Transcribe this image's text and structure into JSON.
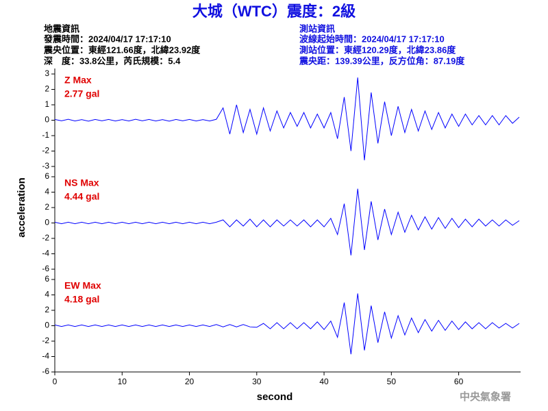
{
  "header": {
    "title": "大城（WTC）震度：2級",
    "quake_info": [
      "地震資訊",
      "發震時間：2024/04/17 17:17:10",
      "震央位置：東經121.66度，北緯23.92度",
      "深　度：33.8公里，芮氏規模：5.4"
    ],
    "station_info": [
      "測站資訊",
      "波線起始時間：2024/04/17 17:17:10",
      "測站位置：東經120.29度，北緯23.86度",
      "震央距：139.39公里，反方位角：87.19度"
    ],
    "y_label": "acceleration",
    "x_label": "second",
    "footer": "中央氣象署"
  },
  "chart_data": [
    {
      "type": "line",
      "annotations": [
        "Z Max",
        "2.77 gal"
      ],
      "x": [
        0,
        1,
        2,
        3,
        4,
        5,
        6,
        7,
        8,
        9,
        10,
        11,
        12,
        13,
        14,
        15,
        16,
        17,
        18,
        19,
        20,
        21,
        22,
        23,
        24,
        25,
        26,
        27,
        28,
        29,
        30,
        31,
        32,
        33,
        34,
        35,
        36,
        37,
        38,
        39,
        40,
        41,
        42,
        43,
        44,
        45,
        46,
        47,
        48,
        49,
        50,
        51,
        52,
        53,
        54,
        55,
        56,
        57,
        58,
        59,
        60,
        61,
        62,
        63,
        64,
        65,
        66,
        67,
        68,
        69
      ],
      "series": [
        {
          "color": "#0000ff",
          "values": [
            0.05,
            -0.04,
            0.06,
            -0.05,
            0.04,
            -0.06,
            0.05,
            -0.04,
            0.05,
            -0.05,
            0.04,
            -0.05,
            0.06,
            -0.04,
            0.05,
            -0.05,
            0.04,
            -0.06,
            0.05,
            -0.04,
            0.05,
            -0.05,
            0.04,
            -0.05,
            0.06,
            0.8,
            -0.9,
            1.0,
            -0.8,
            0.7,
            -0.9,
            0.8,
            -0.7,
            0.6,
            -0.5,
            0.5,
            -0.4,
            0.5,
            -0.5,
            0.4,
            -0.5,
            0.5,
            -1.2,
            1.5,
            -2.0,
            2.77,
            -2.6,
            1.8,
            -1.5,
            1.2,
            -1.0,
            0.9,
            -0.8,
            0.7,
            -0.7,
            0.6,
            -0.6,
            0.5,
            -0.5,
            0.4,
            -0.4,
            0.4,
            -0.3,
            0.3,
            -0.3,
            0.3,
            -0.3,
            0.3,
            -0.2,
            0.2
          ]
        }
      ],
      "xlim": [
        0,
        69.2
      ],
      "ylim": [
        -3,
        3
      ],
      "yticks": [
        -3,
        -2,
        -1,
        0,
        1,
        2,
        3
      ]
    },
    {
      "type": "line",
      "annotations": [
        "NS Max",
        "4.44 gal"
      ],
      "x": [
        0,
        1,
        2,
        3,
        4,
        5,
        6,
        7,
        8,
        9,
        10,
        11,
        12,
        13,
        14,
        15,
        16,
        17,
        18,
        19,
        20,
        21,
        22,
        23,
        24,
        25,
        26,
        27,
        28,
        29,
        30,
        31,
        32,
        33,
        34,
        35,
        36,
        37,
        38,
        39,
        40,
        41,
        42,
        43,
        44,
        45,
        46,
        47,
        48,
        49,
        50,
        51,
        52,
        53,
        54,
        55,
        56,
        57,
        58,
        59,
        60,
        61,
        62,
        63,
        64,
        65,
        66,
        67,
        68,
        69
      ],
      "series": [
        {
          "color": "#0000ff",
          "values": [
            0.1,
            -0.1,
            0.1,
            -0.1,
            0.1,
            -0.1,
            0.1,
            -0.1,
            0.1,
            -0.1,
            0.1,
            -0.1,
            0.1,
            -0.1,
            0.1,
            -0.1,
            0.1,
            -0.1,
            0.1,
            -0.1,
            0.1,
            -0.1,
            0.1,
            -0.1,
            0.1,
            0.4,
            -0.5,
            0.4,
            -0.4,
            0.5,
            -0.5,
            0.4,
            -0.5,
            0.4,
            -0.4,
            0.4,
            -0.4,
            0.4,
            -0.5,
            0.4,
            -0.5,
            0.6,
            -1.5,
            2.5,
            -4.2,
            4.44,
            -3.5,
            2.8,
            -2.2,
            1.8,
            -1.5,
            1.4,
            -1.2,
            1.0,
            -0.9,
            0.8,
            -0.8,
            0.7,
            -0.7,
            0.6,
            -0.6,
            0.5,
            -0.5,
            0.5,
            -0.4,
            0.4,
            -0.4,
            0.4,
            -0.3,
            0.3
          ]
        }
      ],
      "xlim": [
        0,
        69.2
      ],
      "ylim": [
        -6,
        6
      ],
      "yticks": [
        -6,
        -4,
        -2,
        0,
        2,
        4,
        6
      ]
    },
    {
      "type": "line",
      "annotations": [
        "EW Max",
        "4.18 gal"
      ],
      "x": [
        0,
        1,
        2,
        3,
        4,
        5,
        6,
        7,
        8,
        9,
        10,
        11,
        12,
        13,
        14,
        15,
        16,
        17,
        18,
        19,
        20,
        21,
        22,
        23,
        24,
        25,
        26,
        27,
        28,
        29,
        30,
        31,
        32,
        33,
        34,
        35,
        36,
        37,
        38,
        39,
        40,
        41,
        42,
        43,
        44,
        45,
        46,
        47,
        48,
        49,
        50,
        51,
        52,
        53,
        54,
        55,
        56,
        57,
        58,
        59,
        60,
        61,
        62,
        63,
        64,
        65,
        66,
        67,
        68,
        69
      ],
      "series": [
        {
          "color": "#0000ff",
          "values": [
            0.1,
            -0.1,
            0.1,
            -0.1,
            0.1,
            -0.1,
            0.1,
            -0.1,
            0.1,
            -0.1,
            0.1,
            -0.1,
            0.1,
            -0.1,
            0.1,
            -0.1,
            0.1,
            -0.1,
            0.1,
            -0.1,
            0.1,
            -0.1,
            0.1,
            -0.1,
            0.15,
            -0.15,
            0.15,
            -0.15,
            0.15,
            -0.15,
            -0.2,
            0.3,
            -0.4,
            0.4,
            -0.4,
            0.4,
            -0.4,
            0.4,
            -0.4,
            0.5,
            -0.5,
            0.6,
            -1.5,
            3.0,
            -3.7,
            4.18,
            -3.2,
            2.6,
            -2.2,
            1.8,
            -1.6,
            1.3,
            -1.2,
            1.0,
            -0.9,
            0.8,
            -0.7,
            0.7,
            -0.6,
            0.6,
            -0.5,
            0.5,
            -0.4,
            0.4,
            -0.4,
            0.4,
            -0.3,
            0.3,
            -0.3,
            0.3
          ]
        }
      ],
      "xlim": [
        0,
        69.2
      ],
      "ylim": [
        -6,
        6
      ],
      "yticks": [
        -6,
        -4,
        -2,
        0,
        2,
        4,
        6
      ],
      "xticks": [
        0,
        10,
        20,
        30,
        40,
        50,
        60
      ]
    }
  ]
}
